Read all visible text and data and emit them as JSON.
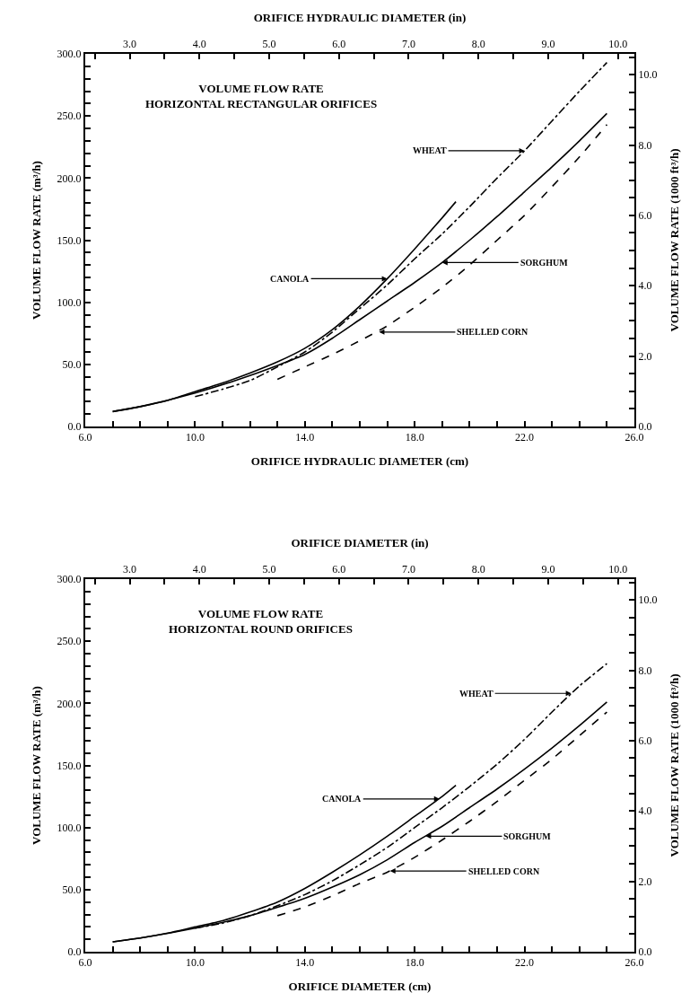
{
  "chart_data": [
    {
      "type": "line",
      "title": "VOLUME FLOW RATE\nHORIZONTAL RECTANGULAR ORIFICES",
      "xlabel": "ORIFICE HYDRAULIC DIAMETER (cm)",
      "x2label": "ORIFICE HYDRAULIC DIAMETER (in)",
      "ylabel": "VOLUME FLOW RATE (m³/h)",
      "y2label": "VOLUME FLOW RATE (1000 ft³/h)",
      "xlim": [
        6,
        26
      ],
      "ylim": [
        0,
        300
      ],
      "x2lim": [
        2.362,
        10.236
      ],
      "y2lim": [
        0,
        10.59
      ],
      "xticks": [
        {
          "value": 6,
          "label": "6.0"
        },
        {
          "value": 7,
          "label": null
        },
        {
          "value": 8,
          "label": null
        },
        {
          "value": 9,
          "label": null
        },
        {
          "value": 10,
          "label": "10.0"
        },
        {
          "value": 11,
          "label": null
        },
        {
          "value": 12,
          "label": null
        },
        {
          "value": 13,
          "label": null
        },
        {
          "value": 14,
          "label": "14.0"
        },
        {
          "value": 15,
          "label": null
        },
        {
          "value": 16,
          "label": null
        },
        {
          "value": 17,
          "label": null
        },
        {
          "value": 18,
          "label": "18.0"
        },
        {
          "value": 19,
          "label": null
        },
        {
          "value": 20,
          "label": null
        },
        {
          "value": 21,
          "label": null
        },
        {
          "value": 22,
          "label": "22.0"
        },
        {
          "value": 23,
          "label": null
        },
        {
          "value": 24,
          "label": null
        },
        {
          "value": 25,
          "label": null
        },
        {
          "value": 26,
          "label": "26.0"
        }
      ],
      "x2ticks": [
        {
          "value": 2.5,
          "label": null
        },
        {
          "value": 3,
          "label": "3.0"
        },
        {
          "value": 3.5,
          "label": null
        },
        {
          "value": 4,
          "label": "4.0"
        },
        {
          "value": 4.5,
          "label": null
        },
        {
          "value": 5,
          "label": "5.0"
        },
        {
          "value": 5.5,
          "label": null
        },
        {
          "value": 6,
          "label": "6.0"
        },
        {
          "value": 6.5,
          "label": null
        },
        {
          "value": 7,
          "label": "7.0"
        },
        {
          "value": 7.5,
          "label": null
        },
        {
          "value": 8,
          "label": "8.0"
        },
        {
          "value": 8.5,
          "label": null
        },
        {
          "value": 9,
          "label": "9.0"
        },
        {
          "value": 9.5,
          "label": null
        },
        {
          "value": 10,
          "label": "10.0"
        }
      ],
      "yticks": [
        {
          "value": 0,
          "label": "0.0"
        },
        {
          "value": 10,
          "label": null
        },
        {
          "value": 20,
          "label": null
        },
        {
          "value": 30,
          "label": null
        },
        {
          "value": 40,
          "label": null
        },
        {
          "value": 50,
          "label": "50.0"
        },
        {
          "value": 60,
          "label": null
        },
        {
          "value": 70,
          "label": null
        },
        {
          "value": 80,
          "label": null
        },
        {
          "value": 90,
          "label": null
        },
        {
          "value": 100,
          "label": "100.0"
        },
        {
          "value": 110,
          "label": null
        },
        {
          "value": 120,
          "label": null
        },
        {
          "value": 130,
          "label": null
        },
        {
          "value": 140,
          "label": null
        },
        {
          "value": 150,
          "label": "150.0"
        },
        {
          "value": 160,
          "label": null
        },
        {
          "value": 170,
          "label": null
        },
        {
          "value": 180,
          "label": null
        },
        {
          "value": 190,
          "label": null
        },
        {
          "value": 200,
          "label": "200.0"
        },
        {
          "value": 210,
          "label": null
        },
        {
          "value": 220,
          "label": null
        },
        {
          "value": 230,
          "label": null
        },
        {
          "value": 240,
          "label": null
        },
        {
          "value": 250,
          "label": "250.0"
        },
        {
          "value": 260,
          "label": null
        },
        {
          "value": 270,
          "label": null
        },
        {
          "value": 280,
          "label": null
        },
        {
          "value": 290,
          "label": null
        },
        {
          "value": 300,
          "label": "300.0"
        }
      ],
      "y2ticks": [
        {
          "value": 0,
          "label": "0.0"
        },
        {
          "value": 0.5,
          "label": null
        },
        {
          "value": 1,
          "label": null
        },
        {
          "value": 1.5,
          "label": null
        },
        {
          "value": 2,
          "label": "2.0"
        },
        {
          "value": 2.5,
          "label": null
        },
        {
          "value": 3,
          "label": null
        },
        {
          "value": 3.5,
          "label": null
        },
        {
          "value": 4,
          "label": "4.0"
        },
        {
          "value": 4.5,
          "label": null
        },
        {
          "value": 5,
          "label": null
        },
        {
          "value": 5.5,
          "label": null
        },
        {
          "value": 6,
          "label": "6.0"
        },
        {
          "value": 6.5,
          "label": null
        },
        {
          "value": 7,
          "label": null
        },
        {
          "value": 7.5,
          "label": null
        },
        {
          "value": 8,
          "label": "8.0"
        },
        {
          "value": 8.5,
          "label": null
        },
        {
          "value": 9,
          "label": null
        },
        {
          "value": 9.5,
          "label": null
        },
        {
          "value": 10,
          "label": "10.0"
        },
        {
          "value": 10.5,
          "label": null
        }
      ],
      "series": [
        {
          "color": "#000000",
          "line_style": "solid",
          "x": [
            7,
            8,
            9,
            10,
            11,
            12,
            13,
            14,
            15,
            16,
            17,
            18,
            19,
            19.5
          ],
          "values": [
            12,
            16,
            21,
            28,
            35,
            43,
            52,
            63,
            78,
            97,
            119,
            143,
            168,
            181
          ]
        },
        {
          "color": "#000000",
          "line_style": "solid",
          "x": [
            7,
            8,
            10,
            12,
            14,
            15,
            16,
            17,
            18,
            19,
            20,
            21,
            22,
            23,
            24,
            25
          ],
          "values": [
            12,
            16,
            27,
            41,
            58,
            71,
            86,
            101,
            116,
            132,
            150,
            169,
            189,
            209,
            230,
            252
          ]
        },
        {
          "color": "#000000",
          "line_style": "dashdot",
          "x": [
            10,
            11,
            12,
            13,
            14,
            15,
            16,
            17,
            18,
            19,
            20,
            21,
            22,
            23,
            24,
            25
          ],
          "values": [
            24,
            30,
            37,
            48,
            60,
            76,
            95,
            114,
            135,
            155,
            177,
            200,
            222,
            246,
            270,
            293
          ]
        },
        {
          "color": "#000000",
          "line_style": "dashed",
          "x": [
            13,
            14,
            15,
            16,
            17,
            18,
            19,
            20,
            21,
            22,
            23,
            24,
            25
          ],
          "values": [
            38,
            48,
            58,
            69,
            81,
            96,
            112,
            130,
            150,
            170,
            193,
            217,
            243
          ]
        }
      ],
      "annotations": [
        {
          "text": "WHEAT",
          "x": 22,
          "y": 222
        },
        {
          "text": "CANOLA",
          "x": 17,
          "y": 119
        },
        {
          "text": "SORGHUM",
          "x": 19,
          "y": 132
        },
        {
          "text": "SHELLED CORN",
          "x": 16.7,
          "y": 76
        }
      ]
    },
    {
      "type": "line",
      "title": "VOLUME FLOW RATE\nHORIZONTAL ROUND ORIFICES",
      "xlabel": "ORIFICE DIAMETER (cm)",
      "x2label": "ORIFICE DIAMETER (in)",
      "ylabel": "VOLUME FLOW RATE (m³/h)",
      "y2label": "VOLUME FLOW RATE (1000 ft³/h)",
      "xlim": [
        6,
        26
      ],
      "ylim": [
        0,
        300
      ],
      "x2lim": [
        2.362,
        10.236
      ],
      "y2lim": [
        0,
        10.59
      ],
      "xticks": [
        {
          "value": 6,
          "label": "6.0"
        },
        {
          "value": 7,
          "label": null
        },
        {
          "value": 8,
          "label": null
        },
        {
          "value": 9,
          "label": null
        },
        {
          "value": 10,
          "label": "10.0"
        },
        {
          "value": 11,
          "label": null
        },
        {
          "value": 12,
          "label": null
        },
        {
          "value": 13,
          "label": null
        },
        {
          "value": 14,
          "label": "14.0"
        },
        {
          "value": 15,
          "label": null
        },
        {
          "value": 16,
          "label": null
        },
        {
          "value": 17,
          "label": null
        },
        {
          "value": 18,
          "label": "18.0"
        },
        {
          "value": 19,
          "label": null
        },
        {
          "value": 20,
          "label": null
        },
        {
          "value": 21,
          "label": null
        },
        {
          "value": 22,
          "label": "22.0"
        },
        {
          "value": 23,
          "label": null
        },
        {
          "value": 24,
          "label": null
        },
        {
          "value": 25,
          "label": null
        },
        {
          "value": 26,
          "label": "26.0"
        }
      ],
      "x2ticks": [
        {
          "value": 2.5,
          "label": null
        },
        {
          "value": 3,
          "label": "3.0"
        },
        {
          "value": 3.5,
          "label": null
        },
        {
          "value": 4,
          "label": "4.0"
        },
        {
          "value": 4.5,
          "label": null
        },
        {
          "value": 5,
          "label": "5.0"
        },
        {
          "value": 5.5,
          "label": null
        },
        {
          "value": 6,
          "label": "6.0"
        },
        {
          "value": 6.5,
          "label": null
        },
        {
          "value": 7,
          "label": "7.0"
        },
        {
          "value": 7.5,
          "label": null
        },
        {
          "value": 8,
          "label": "8.0"
        },
        {
          "value": 8.5,
          "label": null
        },
        {
          "value": 9,
          "label": "9.0"
        },
        {
          "value": 9.5,
          "label": null
        },
        {
          "value": 10,
          "label": "10.0"
        }
      ],
      "yticks": [
        {
          "value": 0,
          "label": "0.0"
        },
        {
          "value": 10,
          "label": null
        },
        {
          "value": 20,
          "label": null
        },
        {
          "value": 30,
          "label": null
        },
        {
          "value": 40,
          "label": null
        },
        {
          "value": 50,
          "label": "50.0"
        },
        {
          "value": 60,
          "label": null
        },
        {
          "value": 70,
          "label": null
        },
        {
          "value": 80,
          "label": null
        },
        {
          "value": 90,
          "label": null
        },
        {
          "value": 100,
          "label": "100.0"
        },
        {
          "value": 110,
          "label": null
        },
        {
          "value": 120,
          "label": null
        },
        {
          "value": 130,
          "label": null
        },
        {
          "value": 140,
          "label": null
        },
        {
          "value": 150,
          "label": "150.0"
        },
        {
          "value": 160,
          "label": null
        },
        {
          "value": 170,
          "label": null
        },
        {
          "value": 180,
          "label": null
        },
        {
          "value": 190,
          "label": null
        },
        {
          "value": 200,
          "label": "200.0"
        },
        {
          "value": 210,
          "label": null
        },
        {
          "value": 220,
          "label": null
        },
        {
          "value": 230,
          "label": null
        },
        {
          "value": 240,
          "label": null
        },
        {
          "value": 250,
          "label": "250.0"
        },
        {
          "value": 260,
          "label": null
        },
        {
          "value": 270,
          "label": null
        },
        {
          "value": 280,
          "label": null
        },
        {
          "value": 290,
          "label": null
        },
        {
          "value": 300,
          "label": "300.0"
        }
      ],
      "y2ticks": [
        {
          "value": 0,
          "label": "0.0"
        },
        {
          "value": 0.5,
          "label": null
        },
        {
          "value": 1,
          "label": null
        },
        {
          "value": 1.5,
          "label": null
        },
        {
          "value": 2,
          "label": "2.0"
        },
        {
          "value": 2.5,
          "label": null
        },
        {
          "value": 3,
          "label": null
        },
        {
          "value": 3.5,
          "label": null
        },
        {
          "value": 4,
          "label": "4.0"
        },
        {
          "value": 4.5,
          "label": null
        },
        {
          "value": 5,
          "label": null
        },
        {
          "value": 5.5,
          "label": null
        },
        {
          "value": 6,
          "label": "6.0"
        },
        {
          "value": 6.5,
          "label": null
        },
        {
          "value": 7,
          "label": null
        },
        {
          "value": 7.5,
          "label": null
        },
        {
          "value": 8,
          "label": "8.0"
        },
        {
          "value": 8.5,
          "label": null
        },
        {
          "value": 9,
          "label": null
        },
        {
          "value": 9.5,
          "label": null
        },
        {
          "value": 10,
          "label": "10.0"
        },
        {
          "value": 10.5,
          "label": null
        }
      ],
      "series": [
        {
          "color": "#000000",
          "line_style": "solid",
          "x": [
            7,
            8,
            9,
            10,
            11,
            12,
            13,
            14,
            15,
            16,
            17,
            18,
            19,
            19.5
          ],
          "values": [
            8,
            11,
            15,
            20,
            25,
            32,
            40,
            51,
            64,
            78,
            93,
            109,
            125,
            134
          ]
        },
        {
          "color": "#000000",
          "line_style": "solid",
          "x": [
            7,
            8,
            10,
            12,
            14,
            15,
            16,
            17,
            18,
            19,
            20,
            21,
            22,
            23,
            24,
            25
          ],
          "values": [
            8,
            11,
            19,
            29,
            43,
            52,
            62,
            74,
            88,
            101,
            116,
            131,
            147,
            164,
            182,
            201
          ]
        },
        {
          "color": "#000000",
          "line_style": "dashdot",
          "x": [
            10,
            11,
            12,
            13,
            14,
            15,
            16,
            17,
            18,
            19,
            20,
            21,
            22,
            23,
            24,
            25
          ],
          "values": [
            19,
            23,
            29,
            37,
            46,
            57,
            70,
            84,
            100,
            116,
            133,
            151,
            171,
            193,
            214,
            232
          ]
        },
        {
          "color": "#000000",
          "line_style": "dashed",
          "x": [
            13,
            14,
            15,
            16,
            17,
            18,
            19,
            20,
            21,
            22,
            23,
            24,
            25
          ],
          "values": [
            29,
            36,
            45,
            55,
            64,
            76,
            90,
            105,
            121,
            138,
            155,
            174,
            193
          ]
        }
      ],
      "annotations": [
        {
          "text": "WHEAT",
          "x": 23.7,
          "y": 208
        },
        {
          "text": "CANOLA",
          "x": 18.9,
          "y": 123
        },
        {
          "text": "SORGHUM",
          "x": 18.4,
          "y": 93
        },
        {
          "text": "SHELLED CORN",
          "x": 17.1,
          "y": 65
        }
      ]
    }
  ]
}
